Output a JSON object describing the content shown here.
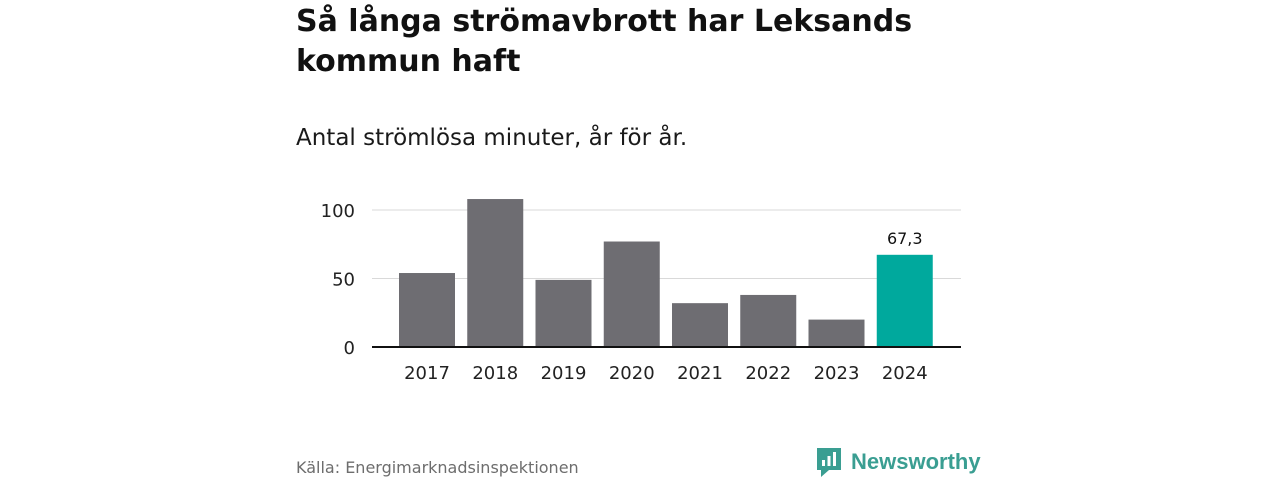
{
  "title": "Så långa strömavbrott har Leksands kommun haft",
  "subtitle": "Antal strömlösa minuter, år för år.",
  "source": "Källa: Energimarknadsinspektionen",
  "brand": {
    "name": "Newsworthy",
    "icon": "newsworthy-logo-icon",
    "color": "#3a9e92"
  },
  "colors": {
    "bar": "#6e6d72",
    "highlight": "#00a99d",
    "grid": "#d9d9d9",
    "axis": "#111111"
  },
  "chart_data": {
    "type": "bar",
    "title": "Så långa strömavbrott har Leksands kommun haft",
    "subtitle": "Antal strömlösa minuter, år för år.",
    "xlabel": "",
    "ylabel": "",
    "categories": [
      "2017",
      "2018",
      "2019",
      "2020",
      "2021",
      "2022",
      "2023",
      "2024"
    ],
    "values": [
      54,
      108,
      49,
      77,
      32,
      38,
      20,
      67.3
    ],
    "highlight_index": 7,
    "data_labels": [
      {
        "index": 7,
        "text": "67,3"
      }
    ],
    "yticks": [
      {
        "value": 0,
        "label": "0"
      },
      {
        "value": 50,
        "label": "50"
      },
      {
        "value": 100,
        "label": "100"
      }
    ],
    "ylim": [
      0,
      110
    ],
    "grid": true,
    "legend": "none"
  }
}
